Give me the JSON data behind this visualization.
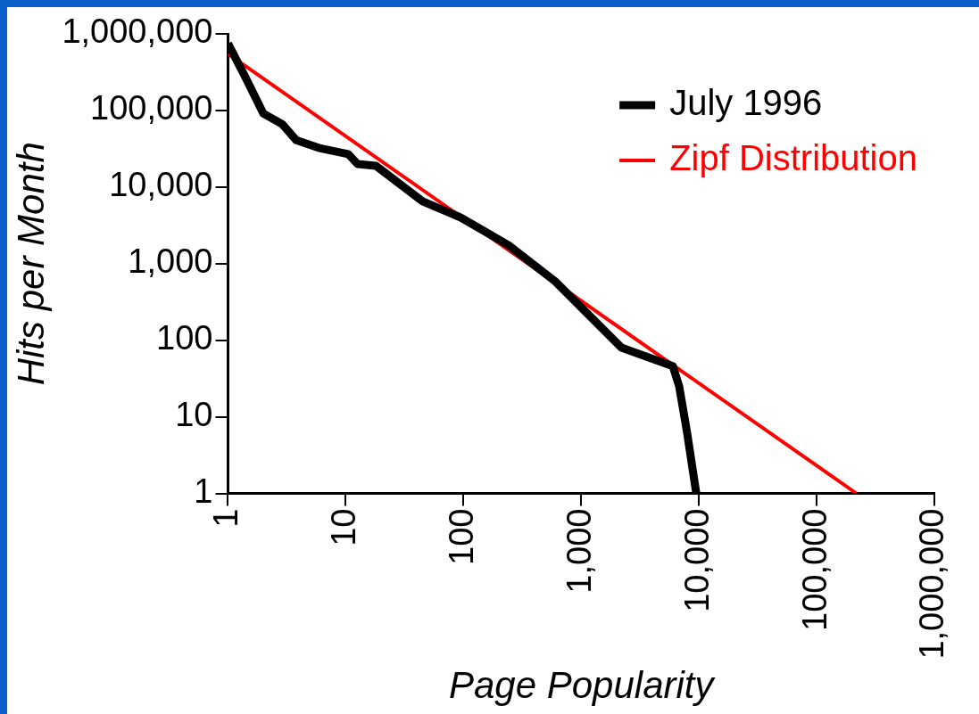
{
  "chart_data": {
    "type": "line",
    "xlabel": "Page Popularity",
    "ylabel": "Hits per Month",
    "log": "xy",
    "legend": "top right",
    "grid": false,
    "marker": "none",
    "xlim": [
      1,
      1000000
    ],
    "ylim": [
      1,
      1000000
    ],
    "xticks": [
      1,
      10,
      100,
      {
        "value": 1000,
        "label": "1,000"
      },
      {
        "value": 10000,
        "label": "10,000"
      },
      {
        "value": 100000,
        "label": "100,000"
      },
      {
        "value": 1000000,
        "label": "1,000,000"
      }
    ],
    "yticks": [
      1,
      10,
      100,
      {
        "value": 1000,
        "label": "1,000"
      },
      {
        "value": 10000,
        "label": "10,000"
      },
      {
        "value": 100000,
        "label": "100,000"
      },
      {
        "value": 1000000,
        "label": "1,000,000"
      }
    ],
    "series": [
      {
        "name": "July 1996",
        "color": "#000000",
        "x": [
          1,
          1.4,
          2,
          2.9,
          3.8,
          6.1,
          10.5,
          12.6,
          18,
          45,
          95,
          240,
          600,
          2200,
          6000,
          6800,
          7900,
          9500
        ],
        "values": [
          750000,
          275000,
          91000,
          66000,
          41000,
          32000,
          27000,
          20000,
          19000,
          6500,
          4000,
          1750,
          590,
          80,
          46,
          25,
          6.5,
          1
        ]
      },
      {
        "name": "Zipf Distribution",
        "color": "#ff0000",
        "x": [
          1,
          218000
        ],
        "values": [
          550000,
          1
        ]
      }
    ]
  }
}
